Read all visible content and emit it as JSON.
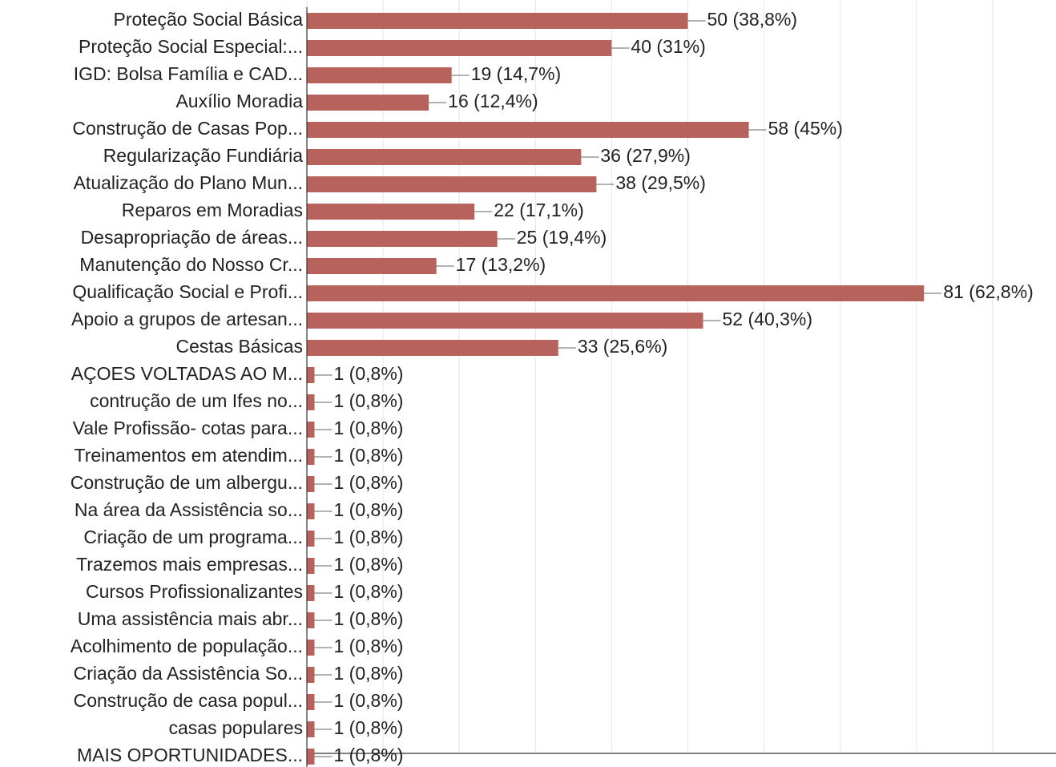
{
  "chart_data": {
    "type": "barh",
    "categories": [
      "Proteção Social Básica",
      "Proteção Social Especial:...",
      "IGD: Bolsa Família e CAD...",
      "Auxílio Moradia",
      "Construção de Casas Pop...",
      "Regularização Fundiária",
      "Atualização do Plano Mun...",
      "Reparos em Moradias",
      "Desapropriação de áreas...",
      "Manutenção do Nosso Cr...",
      "Qualificação Social e Profi...",
      "Apoio a grupos de artesan...",
      "Cestas Básicas",
      "AÇOES VOLTADAS AO M...",
      "contrução de um Ifes no...",
      "Vale Profissão- cotas para...",
      "Treinamentos em atendim...",
      "Construção de um albergu...",
      "Na área da Assistência so...",
      "Criação de um programa...",
      "Trazemos mais empresas...",
      "Cursos Profissionalizantes",
      "Uma assistência mais abr...",
      "Acolhimento de população...",
      "Criação da Assistência So...",
      "Construção de casa popul...",
      "casas populares",
      "MAIS OPORTUNIDADES..."
    ],
    "values": [
      50,
      40,
      19,
      16,
      58,
      36,
      38,
      22,
      25,
      17,
      81,
      52,
      33,
      1,
      1,
      1,
      1,
      1,
      1,
      1,
      1,
      1,
      1,
      1,
      1,
      1,
      1,
      1
    ],
    "value_labels": [
      "50 (38,8%)",
      "40 (31%)",
      "19 (14,7%)",
      "16 (12,4%)",
      "58 (45%)",
      "36 (27,9%)",
      "38 (29,5%)",
      "22 (17,1%)",
      "25 (19,4%)",
      "17 (13,2%)",
      "81 (62,8%)",
      "52 (40,3%)",
      "33 (25,6%)",
      "1 (0,8%)",
      "1 (0,8%)",
      "1 (0,8%)",
      "1 (0,8%)",
      "1 (0,8%)",
      "1 (0,8%)",
      "1 (0,8%)",
      "1 (0,8%)",
      "1 (0,8%)",
      "1 (0,8%)",
      "1 (0,8%)",
      "1 (0,8%)",
      "1 (0,8%)",
      "1 (0,8%)",
      "1 (0,8%)"
    ],
    "color": "#b7625d",
    "xlim": [
      0,
      98
    ],
    "xticks": [
      0,
      10,
      20,
      30,
      40,
      50,
      60,
      70,
      80,
      90
    ],
    "grid": true
  }
}
